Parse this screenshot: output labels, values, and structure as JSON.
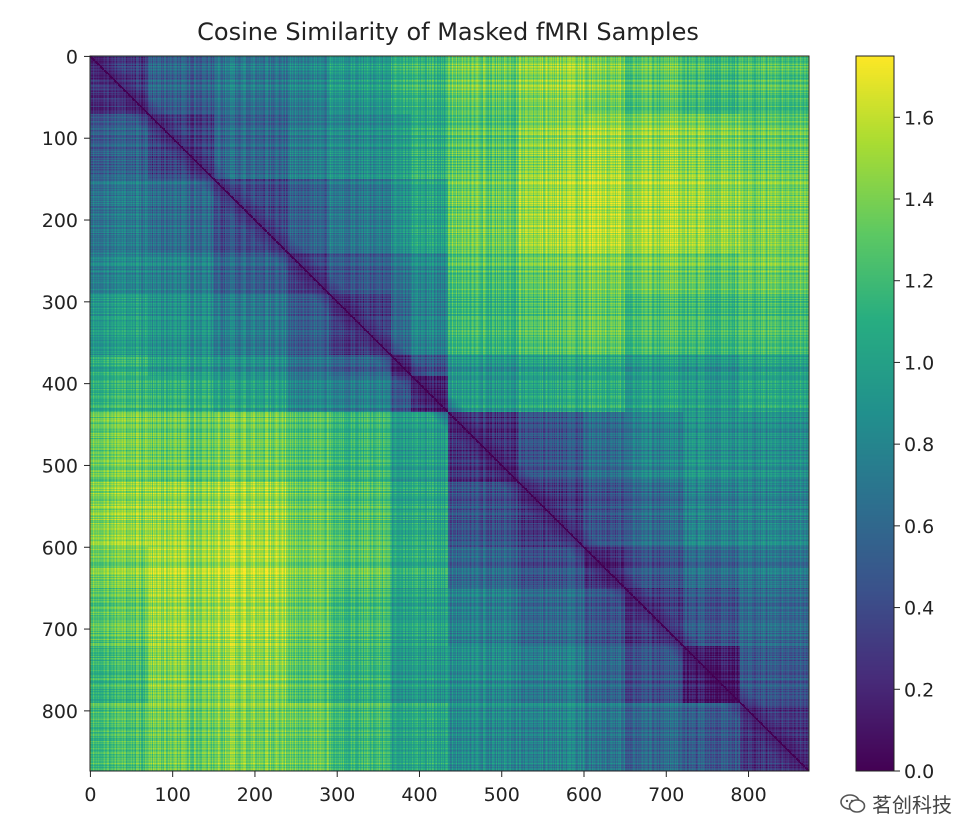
{
  "chart_data": {
    "type": "heatmap",
    "title": "Cosine Similarity of Masked fMRI Samples",
    "xlabel": "",
    "ylabel": "",
    "n": 874,
    "x_ticks": [
      0,
      100,
      200,
      300,
      400,
      500,
      600,
      700,
      800
    ],
    "y_ticks": [
      0,
      100,
      200,
      300,
      400,
      500,
      600,
      700,
      800
    ],
    "colorbar": {
      "label": "",
      "range": [
        0.0,
        1.75
      ],
      "ticks": [
        0.0,
        0.2,
        0.4,
        0.6,
        0.8,
        1.0,
        1.2,
        1.4,
        1.6
      ],
      "tick_labels": [
        "0.0",
        "0.2",
        "0.4",
        "0.6",
        "0.8",
        "1.0",
        "1.2",
        "1.4",
        "1.6"
      ]
    },
    "colormap": "viridis",
    "block_boundaries": [
      0,
      70,
      150,
      240,
      290,
      365,
      390,
      435,
      520,
      600,
      650,
      720,
      790,
      874
    ],
    "block_values": [
      [
        0.3,
        0.55,
        0.7,
        0.8,
        0.95,
        1.1,
        1.15,
        1.35,
        1.45,
        1.4,
        1.3,
        1.2,
        1.25
      ],
      [
        0.55,
        0.35,
        0.6,
        0.75,
        0.85,
        0.95,
        1.1,
        1.3,
        1.45,
        1.5,
        1.45,
        1.4,
        1.35
      ],
      [
        0.7,
        0.6,
        0.4,
        0.55,
        0.7,
        0.85,
        1.0,
        1.35,
        1.5,
        1.55,
        1.5,
        1.45,
        1.4
      ],
      [
        0.8,
        0.75,
        0.55,
        0.35,
        0.5,
        0.65,
        0.8,
        1.25,
        1.35,
        1.4,
        1.35,
        1.3,
        1.35
      ],
      [
        0.95,
        0.85,
        0.7,
        0.5,
        0.3,
        0.55,
        0.75,
        1.15,
        1.25,
        1.3,
        1.2,
        1.15,
        1.2
      ],
      [
        1.1,
        0.95,
        0.85,
        0.65,
        0.55,
        0.2,
        0.45,
        0.9,
        1.0,
        1.05,
        0.95,
        0.9,
        1.0
      ],
      [
        1.15,
        1.1,
        1.0,
        0.8,
        0.75,
        0.45,
        0.2,
        0.95,
        1.05,
        1.1,
        1.0,
        0.95,
        1.05
      ],
      [
        1.35,
        1.3,
        1.35,
        1.25,
        1.15,
        0.9,
        0.95,
        0.25,
        0.45,
        0.6,
        0.75,
        0.85,
        0.85
      ],
      [
        1.45,
        1.45,
        1.5,
        1.35,
        1.25,
        1.0,
        1.05,
        0.45,
        0.3,
        0.45,
        0.6,
        0.75,
        0.8
      ],
      [
        1.4,
        1.5,
        1.55,
        1.4,
        1.3,
        1.05,
        1.1,
        0.6,
        0.45,
        0.25,
        0.45,
        0.6,
        0.7
      ],
      [
        1.3,
        1.45,
        1.5,
        1.35,
        1.2,
        0.95,
        1.0,
        0.75,
        0.6,
        0.45,
        0.3,
        0.45,
        0.6
      ],
      [
        1.2,
        1.4,
        1.45,
        1.3,
        1.15,
        0.9,
        0.95,
        0.85,
        0.75,
        0.6,
        0.45,
        0.15,
        0.5
      ],
      [
        1.25,
        1.35,
        1.4,
        1.35,
        1.2,
        1.0,
        1.05,
        0.85,
        0.8,
        0.7,
        0.6,
        0.5,
        0.3
      ]
    ],
    "diagonal_value": 0.0
  },
  "watermark": {
    "text": "茗创科技",
    "icon": "wechat-icon"
  },
  "colors": {
    "axis": "#222222",
    "background": "#ffffff"
  }
}
